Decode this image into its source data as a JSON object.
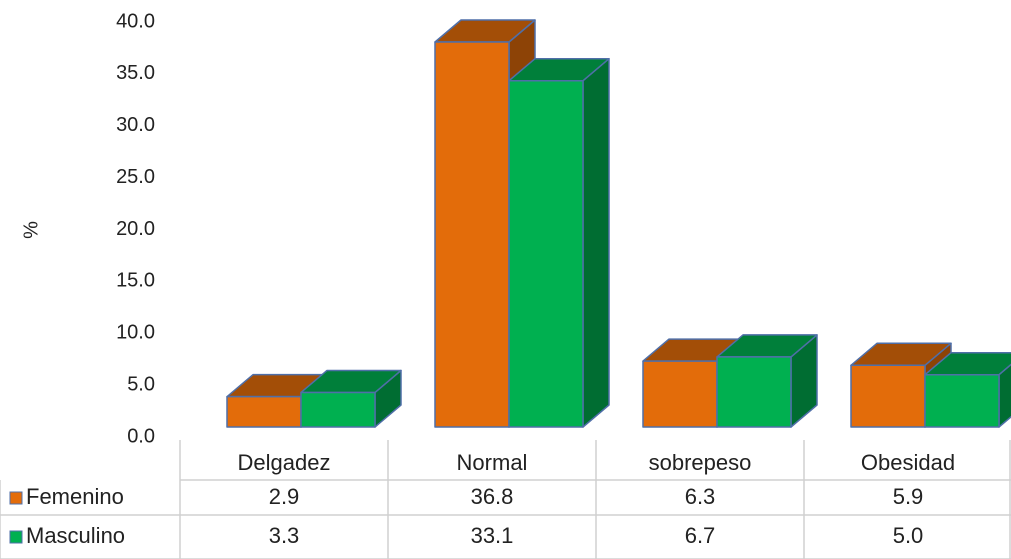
{
  "chart_data": {
    "type": "bar3d",
    "y_label": "%",
    "categories": [
      "Delgadez",
      "Normal",
      "sobrepeso",
      "Obesidad"
    ],
    "series": [
      {
        "name": "Femenino",
        "color": "#e36c0a",
        "values": [
          2.9,
          36.8,
          6.3,
          5.9
        ],
        "value_labels": [
          "2.9",
          "36.8",
          "6.3",
          "5.9"
        ]
      },
      {
        "name": "Masculino",
        "color": "#00b050",
        "values": [
          3.3,
          33.1,
          6.7,
          5.0
        ],
        "value_labels": [
          "3.3",
          "33.1",
          "6.7",
          "5.0"
        ]
      }
    ],
    "ylim": [
      0,
      40
    ],
    "yticks": [
      {
        "value": 0,
        "label": "0.0"
      },
      {
        "value": 5,
        "label": "5.0"
      },
      {
        "value": 10,
        "label": "10.0"
      },
      {
        "value": 15,
        "label": "15.0"
      },
      {
        "value": 20,
        "label": "20.0"
      },
      {
        "value": 25,
        "label": "25.0"
      },
      {
        "value": 30,
        "label": "30.0"
      },
      {
        "value": 35,
        "label": "35.0"
      },
      {
        "value": 40,
        "label": "40.0"
      }
    ],
    "data_table": true
  }
}
